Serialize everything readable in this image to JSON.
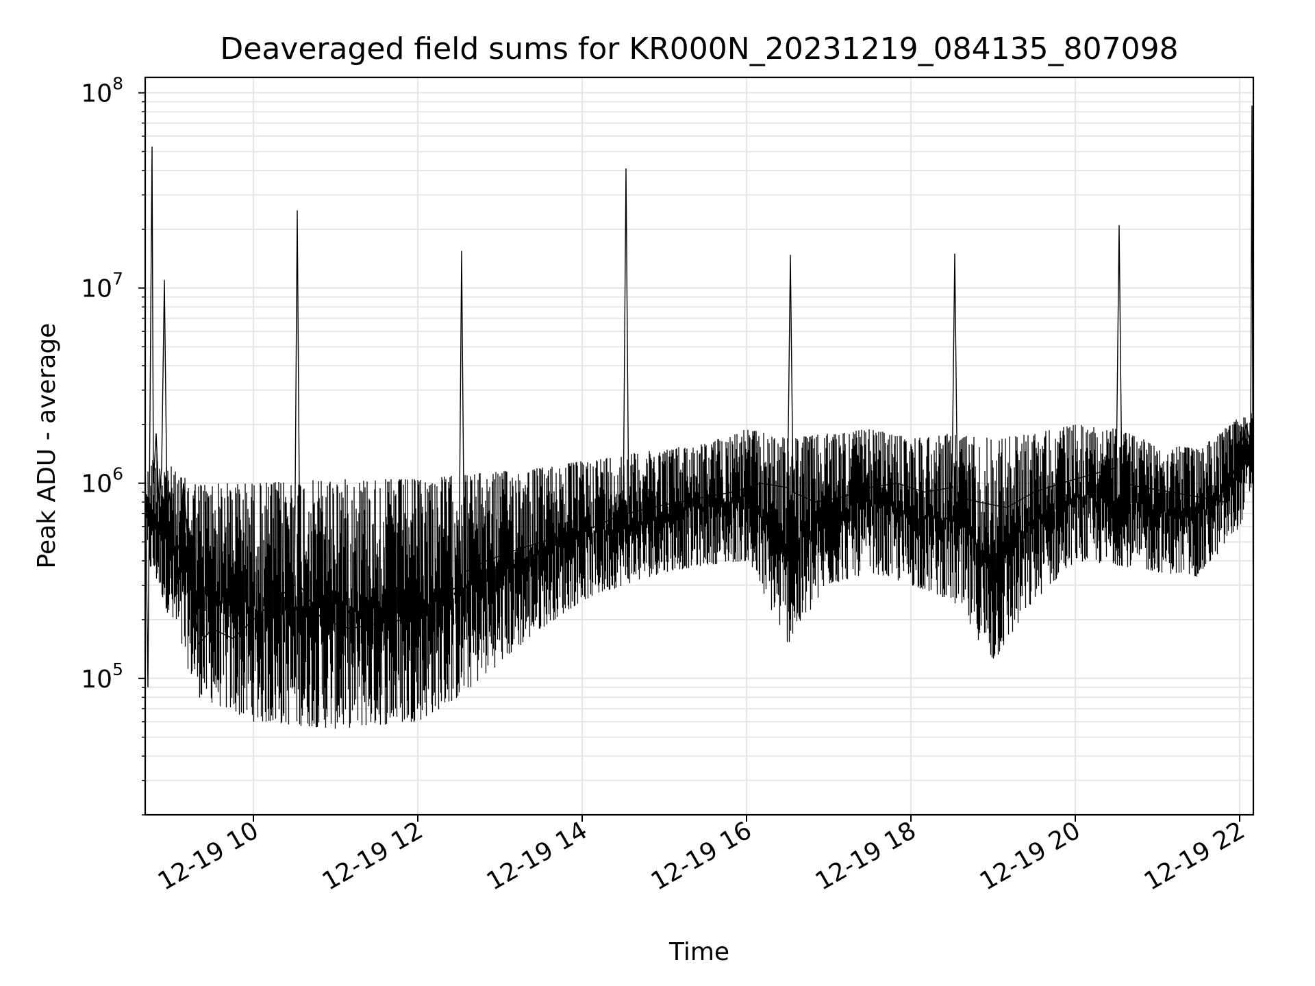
{
  "chart_data": {
    "type": "line",
    "title": "Deaveraged field sums for KR000N_20231219_084135_807098",
    "xlabel": "Time",
    "ylabel": "Peak ADU - average",
    "yscale": "log",
    "ylim": [
      20000,
      120000000
    ],
    "xlim": [
      "2023-12-19 08:41",
      "2023-12-19 22:10"
    ],
    "x_ticks": [
      {
        "label": "12-19 10",
        "value": "2023-12-19 10:00"
      },
      {
        "label": "12-19 12",
        "value": "2023-12-19 12:00"
      },
      {
        "label": "12-19 14",
        "value": "2023-12-19 14:00"
      },
      {
        "label": "12-19 16",
        "value": "2023-12-19 16:00"
      },
      {
        "label": "12-19 18",
        "value": "2023-12-19 18:00"
      },
      {
        "label": "12-19 20",
        "value": "2023-12-19 20:00"
      },
      {
        "label": "12-19 22",
        "value": "2023-12-19 22:00"
      }
    ],
    "y_ticks": [
      {
        "base": "10",
        "exp": "5",
        "value": 100000
      },
      {
        "base": "10",
        "exp": "6",
        "value": 1000000
      },
      {
        "base": "10",
        "exp": "7",
        "value": 10000000
      },
      {
        "base": "10",
        "exp": "8",
        "value": 100000000
      }
    ],
    "grid": true,
    "line_color": "#000000",
    "grid_color": "#e6e6e6",
    "series": [
      {
        "x": [
          "2023-12-19 08:41",
          "2023-12-19 08:43",
          "2023-12-19 08:44",
          "2023-12-19 08:46",
          "2023-12-19 08:47",
          "2023-12-19 08:49",
          "2023-12-19 08:51",
          "2023-12-19 08:53",
          "2023-12-19 08:55",
          "2023-12-19 08:57",
          "2023-12-19 08:59",
          "2023-12-19 09:01",
          "2023-12-19 09:03",
          "2023-12-19 09:06",
          "2023-12-19 09:09",
          "2023-12-19 09:13",
          "2023-12-19 09:20",
          "2023-12-19 09:30",
          "2023-12-19 09:45",
          "2023-12-19 10:00",
          "2023-12-19 10:15",
          "2023-12-19 10:30",
          "2023-12-19 10:32",
          "2023-12-19 10:34",
          "2023-12-19 10:50",
          "2023-12-19 11:10",
          "2023-12-19 11:30",
          "2023-12-19 11:50",
          "2023-12-19 12:10",
          "2023-12-19 12:30",
          "2023-12-19 12:32",
          "2023-12-19 12:34",
          "2023-12-19 12:50",
          "2023-12-19 13:10",
          "2023-12-19 13:30",
          "2023-12-19 13:50",
          "2023-12-19 14:10",
          "2023-12-19 14:30",
          "2023-12-19 14:32",
          "2023-12-19 14:34",
          "2023-12-19 14:50",
          "2023-12-19 15:10",
          "2023-12-19 15:30",
          "2023-12-19 15:50",
          "2023-12-19 16:10",
          "2023-12-19 16:30",
          "2023-12-19 16:32",
          "2023-12-19 16:34",
          "2023-12-19 16:50",
          "2023-12-19 17:10",
          "2023-12-19 17:30",
          "2023-12-19 17:50",
          "2023-12-19 18:10",
          "2023-12-19 18:30",
          "2023-12-19 18:32",
          "2023-12-19 18:34",
          "2023-12-19 18:50",
          "2023-12-19 19:10",
          "2023-12-19 19:30",
          "2023-12-19 19:50",
          "2023-12-19 20:10",
          "2023-12-19 20:30",
          "2023-12-19 20:32",
          "2023-12-19 20:34",
          "2023-12-19 20:50",
          "2023-12-19 21:10",
          "2023-12-19 21:30",
          "2023-12-19 21:50",
          "2023-12-19 22:00",
          "2023-12-19 22:05",
          "2023-12-19 22:08",
          "2023-12-19 22:09",
          "2023-12-19 22:10"
        ],
        "y": [
          1400000,
          90000,
          800000,
          53000000,
          1000000,
          1800000,
          800000,
          1200000,
          11000000,
          700000,
          900000,
          600000,
          400000,
          500000,
          1000000,
          400000,
          150000,
          180000,
          160000,
          200000,
          250000,
          300000,
          25000000,
          300000,
          200000,
          180000,
          190000,
          200000,
          240000,
          300000,
          15500000,
          350000,
          400000,
          450000,
          500000,
          550000,
          600000,
          700000,
          41000000,
          700000,
          750000,
          800000,
          850000,
          900000,
          1000000,
          950000,
          14800000,
          900000,
          800000,
          850000,
          950000,
          1000000,
          900000,
          950000,
          15000000,
          850000,
          800000,
          750000,
          900000,
          1000000,
          1100000,
          1200000,
          21000000,
          1000000,
          950000,
          900000,
          850000,
          800000,
          1500000,
          2000000,
          1500000,
          86000000,
          95000
        ]
      }
    ],
    "noise_profile": {
      "x": [
        "2023-12-19 08:41",
        "2023-12-19 08:50",
        "2023-12-19 09:05",
        "2023-12-19 09:20",
        "2023-12-19 10:00",
        "2023-12-19 11:00",
        "2023-12-19 12:00",
        "2023-12-19 12:30",
        "2023-12-19 13:00",
        "2023-12-19 13:30",
        "2023-12-19 14:00",
        "2023-12-19 14:30",
        "2023-12-19 15:00",
        "2023-12-19 15:30",
        "2023-12-19 16:00",
        "2023-12-19 16:30",
        "2023-12-19 17:00",
        "2023-12-19 17:30",
        "2023-12-19 18:00",
        "2023-12-19 18:30",
        "2023-12-19 19:00",
        "2023-12-19 19:30",
        "2023-12-19 20:00",
        "2023-12-19 20:30",
        "2023-12-19 21:00",
        "2023-12-19 21:30",
        "2023-12-19 22:00",
        "2023-12-19 22:10"
      ],
      "upper": [
        1100000,
        1500000,
        1100000,
        1000000,
        1000000,
        1050000,
        1050000,
        1100000,
        1150000,
        1200000,
        1300000,
        1400000,
        1500000,
        1600000,
        1900000,
        1700000,
        1800000,
        1900000,
        1700000,
        1800000,
        1700000,
        1800000,
        2000000,
        1900000,
        1600000,
        1500000,
        2200000,
        2300000
      ],
      "lower": [
        400000,
        300000,
        150000,
        80000,
        60000,
        55000,
        60000,
        80000,
        120000,
        180000,
        250000,
        300000,
        350000,
        380000,
        400000,
        150000,
        300000,
        350000,
        300000,
        250000,
        120000,
        250000,
        400000,
        380000,
        350000,
        330000,
        600000,
        1000000
      ]
    }
  }
}
